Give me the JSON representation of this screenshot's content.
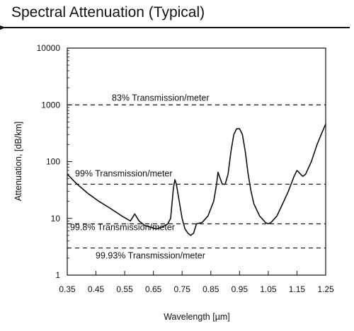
{
  "header": {
    "title": "Spectral Attenuation (Typical)"
  },
  "chart_data": {
    "type": "line",
    "title": "",
    "xlabel": "Wavelength [µm]",
    "ylabel": "Attenuation, [dB/km]",
    "xlim": [
      0.35,
      1.25
    ],
    "ylim": [
      1,
      10000
    ],
    "yscale": "log",
    "grid": false,
    "x_ticks": [
      0.35,
      0.45,
      0.55,
      0.65,
      0.75,
      0.85,
      0.95,
      1.05,
      1.15,
      1.25
    ],
    "x_tick_labels": [
      "0.35",
      "0.45",
      "0.55",
      "0.65",
      "0.75",
      "0.85",
      "0.95",
      "1.05",
      "1.15",
      "1.25"
    ],
    "y_ticks": [
      1,
      10,
      100,
      1000,
      10000
    ],
    "y_tick_labels": [
      "1",
      "10",
      "100",
      "1000",
      "10000"
    ],
    "series": [
      {
        "color": "#111111",
        "x": [
          0.35,
          0.38,
          0.42,
          0.46,
          0.5,
          0.54,
          0.57,
          0.585,
          0.6,
          0.62,
          0.64,
          0.66,
          0.68,
          0.7,
          0.71,
          0.72,
          0.725,
          0.73,
          0.74,
          0.75,
          0.76,
          0.77,
          0.78,
          0.79,
          0.8,
          0.82,
          0.84,
          0.86,
          0.87,
          0.875,
          0.88,
          0.89,
          0.9,
          0.91,
          0.92,
          0.93,
          0.94,
          0.95,
          0.96,
          0.97,
          0.98,
          0.99,
          1.0,
          1.02,
          1.04,
          1.05,
          1.06,
          1.08,
          1.1,
          1.12,
          1.14,
          1.15,
          1.16,
          1.17,
          1.18,
          1.2,
          1.22,
          1.24,
          1.25
        ],
        "y": [
          60,
          42,
          28,
          20,
          15,
          11,
          9,
          12,
          9,
          7.5,
          7,
          6.5,
          7,
          8,
          10,
          35,
          48,
          40,
          20,
          10,
          6.5,
          5.5,
          5,
          5.5,
          8,
          8.5,
          11,
          20,
          40,
          65,
          55,
          40,
          40,
          60,
          150,
          300,
          380,
          380,
          300,
          150,
          60,
          30,
          18,
          11,
          8.5,
          8,
          8.5,
          11,
          18,
          30,
          55,
          70,
          62,
          55,
          60,
          100,
          200,
          350,
          460
        ]
      }
    ],
    "reference_lines": [
      {
        "value": 1000,
        "label": "83% Transmission/meter"
      },
      {
        "value": 40,
        "label": "99% Transmission/meter"
      },
      {
        "value": 8,
        "label": "99.8% Transmission/meter"
      },
      {
        "value": 3,
        "label": "99.93% Transmission/meter"
      }
    ]
  }
}
